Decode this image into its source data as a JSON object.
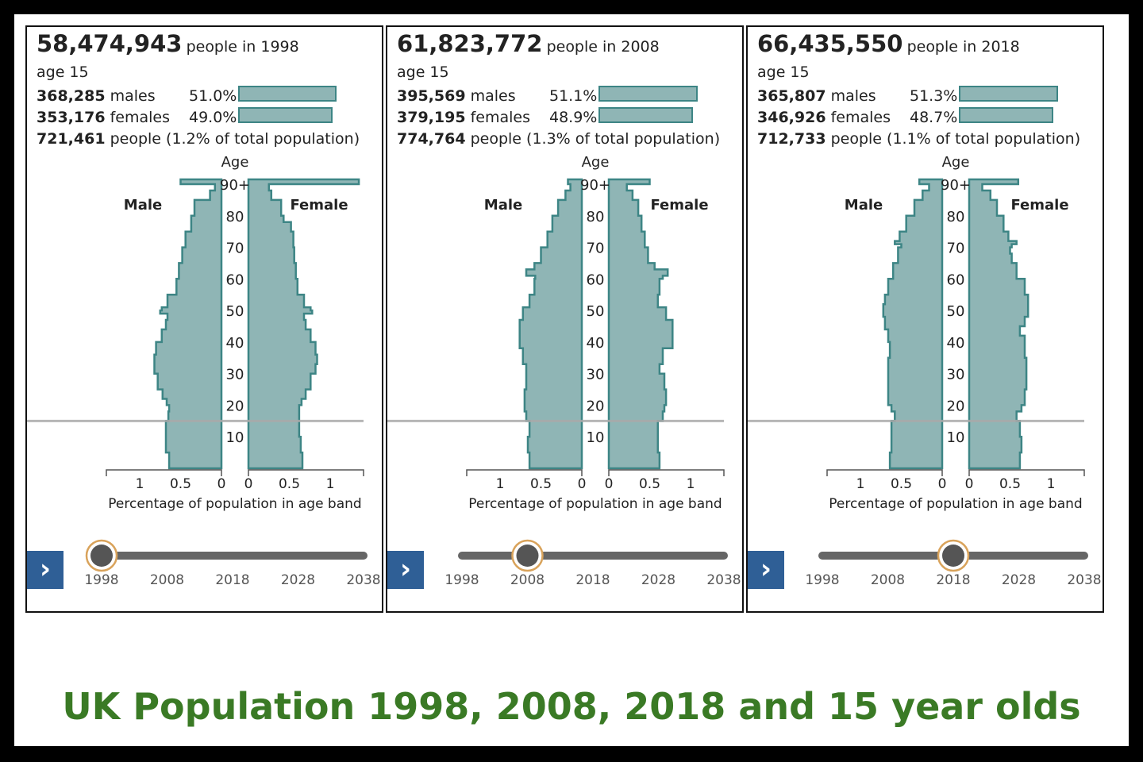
{
  "title": "UK Population 1998, 2008, 2018 and 15 year olds",
  "colors": {
    "bar_fill": "#8fb5b5",
    "bar_stroke": "#3d8585",
    "nav": "#2f5f96",
    "title": "#3a7a25"
  },
  "chart_data": [
    {
      "type": "bar",
      "subtype": "population-pyramid",
      "year_total": "58,474,943",
      "year_label": "people in 1998",
      "selected_age": "age 15",
      "males_count": "368,285",
      "males_label": "males",
      "males_pct": "51.0%",
      "males_share": 51.0,
      "females_count": "353,176",
      "females_label": "females",
      "females_pct": "49.0%",
      "females_share": 49.0,
      "total_count": "721,461",
      "total_label": "people (1.2% of total population)",
      "axis_title": "Age",
      "age_ticks": [
        "10",
        "20",
        "30",
        "40",
        "50",
        "60",
        "70",
        "80",
        "90+"
      ],
      "male_label": "Male",
      "female_label": "Female",
      "x_ticks_left": [
        "1",
        "0.5",
        "0"
      ],
      "x_ticks_right": [
        "0",
        "0.5",
        "1"
      ],
      "xlabel": "Percentage of population in age band",
      "x_range": [
        0,
        1.4
      ],
      "male_profile": [
        [
          0,
          0.64
        ],
        [
          5,
          0.68
        ],
        [
          10,
          0.68
        ],
        [
          15,
          0.65
        ],
        [
          18,
          0.64
        ],
        [
          20,
          0.67
        ],
        [
          22,
          0.72
        ],
        [
          25,
          0.78
        ],
        [
          30,
          0.82
        ],
        [
          33,
          0.82
        ],
        [
          36,
          0.8
        ],
        [
          40,
          0.73
        ],
        [
          44,
          0.68
        ],
        [
          47,
          0.66
        ],
        [
          49,
          0.75
        ],
        [
          50,
          0.73
        ],
        [
          51,
          0.66
        ],
        [
          55,
          0.55
        ],
        [
          60,
          0.52
        ],
        [
          65,
          0.48
        ],
        [
          70,
          0.44
        ],
        [
          75,
          0.37
        ],
        [
          80,
          0.33
        ],
        [
          85,
          0.14
        ],
        [
          88,
          0.08
        ],
        [
          90,
          0.5
        ]
      ],
      "female_profile": [
        [
          0,
          0.66
        ],
        [
          5,
          0.64
        ],
        [
          10,
          0.62
        ],
        [
          15,
          0.62
        ],
        [
          18,
          0.62
        ],
        [
          20,
          0.65
        ],
        [
          22,
          0.7
        ],
        [
          25,
          0.76
        ],
        [
          30,
          0.82
        ],
        [
          33,
          0.84
        ],
        [
          36,
          0.82
        ],
        [
          40,
          0.76
        ],
        [
          44,
          0.7
        ],
        [
          47,
          0.68
        ],
        [
          49,
          0.78
        ],
        [
          50,
          0.76
        ],
        [
          51,
          0.68
        ],
        [
          55,
          0.6
        ],
        [
          60,
          0.58
        ],
        [
          65,
          0.56
        ],
        [
          70,
          0.55
        ],
        [
          75,
          0.52
        ],
        [
          78,
          0.43
        ],
        [
          80,
          0.4
        ],
        [
          85,
          0.28
        ],
        [
          88,
          0.25
        ],
        [
          90,
          1.35
        ]
      ],
      "slider_years": [
        "1998",
        "2008",
        "2018",
        "2028",
        "2038"
      ],
      "slider_value": 1998
    },
    {
      "type": "bar",
      "subtype": "population-pyramid",
      "year_total": "61,823,772",
      "year_label": "people in 2008",
      "selected_age": "age 15",
      "males_count": "395,569",
      "males_label": "males",
      "males_pct": "51.1%",
      "males_share": 51.1,
      "females_count": "379,195",
      "females_label": "females",
      "females_pct": "48.9%",
      "females_share": 48.9,
      "total_count": "774,764",
      "total_label": "people (1.3% of total population)",
      "axis_title": "Age",
      "age_ticks": [
        "10",
        "20",
        "30",
        "40",
        "50",
        "60",
        "70",
        "80",
        "90+"
      ],
      "male_label": "Male",
      "female_label": "Female",
      "x_ticks_left": [
        "1",
        "0.5",
        "0"
      ],
      "x_ticks_right": [
        "0",
        "0.5",
        "1"
      ],
      "xlabel": "Percentage of population in age band",
      "x_range": [
        0,
        1.4
      ],
      "male_profile": [
        [
          0,
          0.64
        ],
        [
          5,
          0.66
        ],
        [
          10,
          0.64
        ],
        [
          15,
          0.68
        ],
        [
          18,
          0.7
        ],
        [
          20,
          0.7
        ],
        [
          25,
          0.68
        ],
        [
          30,
          0.68
        ],
        [
          33,
          0.72
        ],
        [
          38,
          0.76
        ],
        [
          43,
          0.76
        ],
        [
          47,
          0.72
        ],
        [
          51,
          0.64
        ],
        [
          55,
          0.58
        ],
        [
          60,
          0.57
        ],
        [
          61,
          0.68
        ],
        [
          63,
          0.58
        ],
        [
          65,
          0.5
        ],
        [
          70,
          0.42
        ],
        [
          75,
          0.36
        ],
        [
          80,
          0.29
        ],
        [
          85,
          0.2
        ],
        [
          88,
          0.14
        ],
        [
          90,
          0.17
        ]
      ],
      "female_profile": [
        [
          0,
          0.62
        ],
        [
          5,
          0.6
        ],
        [
          10,
          0.6
        ],
        [
          15,
          0.66
        ],
        [
          18,
          0.68
        ],
        [
          20,
          0.7
        ],
        [
          25,
          0.68
        ],
        [
          30,
          0.62
        ],
        [
          33,
          0.66
        ],
        [
          38,
          0.78
        ],
        [
          43,
          0.78
        ],
        [
          47,
          0.7
        ],
        [
          51,
          0.6
        ],
        [
          55,
          0.62
        ],
        [
          60,
          0.66
        ],
        [
          61,
          0.72
        ],
        [
          63,
          0.56
        ],
        [
          65,
          0.48
        ],
        [
          70,
          0.44
        ],
        [
          75,
          0.4
        ],
        [
          80,
          0.36
        ],
        [
          85,
          0.29
        ],
        [
          88,
          0.22
        ],
        [
          90,
          0.5
        ]
      ],
      "slider_years": [
        "1998",
        "2008",
        "2018",
        "2028",
        "2038"
      ],
      "slider_value": 2008
    },
    {
      "type": "bar",
      "subtype": "population-pyramid",
      "year_total": "66,435,550",
      "year_label": "people in 2018",
      "selected_age": "age 15",
      "males_count": "365,807",
      "males_label": "males",
      "males_pct": "51.3%",
      "males_share": 51.3,
      "females_count": "346,926",
      "females_label": "females",
      "females_pct": "48.7%",
      "females_share": 48.7,
      "total_count": "712,733",
      "total_label": "people (1.1% of total population)",
      "axis_title": "Age",
      "age_ticks": [
        "10",
        "20",
        "30",
        "40",
        "50",
        "60",
        "70",
        "80",
        "90+"
      ],
      "male_label": "Male",
      "female_label": "Female",
      "x_ticks_left": [
        "1",
        "0.5",
        "0"
      ],
      "x_ticks_right": [
        "0",
        "0.5",
        "1"
      ],
      "xlabel": "Percentage of population in age band",
      "x_range": [
        0,
        1.4
      ],
      "male_profile": [
        [
          0,
          0.64
        ],
        [
          5,
          0.62
        ],
        [
          10,
          0.62
        ],
        [
          15,
          0.58
        ],
        [
          18,
          0.62
        ],
        [
          20,
          0.66
        ],
        [
          25,
          0.66
        ],
        [
          30,
          0.66
        ],
        [
          35,
          0.64
        ],
        [
          40,
          0.66
        ],
        [
          44,
          0.7
        ],
        [
          48,
          0.72
        ],
        [
          52,
          0.7
        ],
        [
          55,
          0.66
        ],
        [
          60,
          0.6
        ],
        [
          65,
          0.54
        ],
        [
          70,
          0.5
        ],
        [
          71,
          0.58
        ],
        [
          72,
          0.52
        ],
        [
          75,
          0.44
        ],
        [
          80,
          0.34
        ],
        [
          85,
          0.24
        ],
        [
          88,
          0.16
        ],
        [
          90,
          0.28
        ]
      ],
      "female_profile": [
        [
          0,
          0.62
        ],
        [
          5,
          0.64
        ],
        [
          10,
          0.62
        ],
        [
          15,
          0.58
        ],
        [
          18,
          0.64
        ],
        [
          20,
          0.68
        ],
        [
          25,
          0.7
        ],
        [
          30,
          0.7
        ],
        [
          35,
          0.68
        ],
        [
          40,
          0.68
        ],
        [
          42,
          0.62
        ],
        [
          45,
          0.68
        ],
        [
          48,
          0.72
        ],
        [
          52,
          0.72
        ],
        [
          55,
          0.68
        ],
        [
          60,
          0.58
        ],
        [
          65,
          0.52
        ],
        [
          68,
          0.5
        ],
        [
          70,
          0.52
        ],
        [
          71,
          0.58
        ],
        [
          72,
          0.48
        ],
        [
          75,
          0.42
        ],
        [
          80,
          0.34
        ],
        [
          85,
          0.26
        ],
        [
          88,
          0.16
        ],
        [
          90,
          0.6
        ]
      ],
      "slider_years": [
        "1998",
        "2008",
        "2018",
        "2028",
        "2038"
      ],
      "slider_value": 2018
    }
  ]
}
